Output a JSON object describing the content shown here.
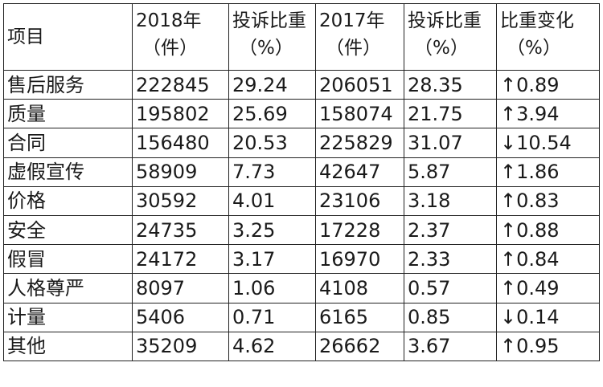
{
  "table": {
    "headers": [
      {
        "line1": "项目",
        "line2": ""
      },
      {
        "line1": "2018年",
        "line2": "（件）"
      },
      {
        "line1": "投诉比重",
        "line2": "（%）"
      },
      {
        "line1": "2017年",
        "line2": "（件）"
      },
      {
        "line1": "投诉比重",
        "line2": "（%）"
      },
      {
        "line1": "比重变化",
        "line2": "（%）"
      }
    ],
    "rows": [
      [
        "售后服务",
        "222845",
        "29.24",
        "206051",
        "28.35",
        "↑0.89"
      ],
      [
        "质量",
        "195802",
        "25.69",
        "158074",
        "21.75",
        "↑3.94"
      ],
      [
        "合同",
        "156480",
        "20.53",
        "225829",
        "31.07",
        "↓10.54"
      ],
      [
        "虚假宣传",
        "58909",
        "7.73",
        "42647",
        "5.87",
        "↑1.86"
      ],
      [
        "价格",
        "30592",
        "4.01",
        "23106",
        "3.18",
        "↑0.83"
      ],
      [
        "安全",
        "24735",
        "3.25",
        "17228",
        "2.37",
        "↑0.88"
      ],
      [
        "假冒",
        "24172",
        "3.17",
        "16970",
        "2.33",
        "↑0.84"
      ],
      [
        "人格尊严",
        "8097",
        "1.06",
        "4108",
        "0.57",
        "↑0.49"
      ],
      [
        "计量",
        "5406",
        "0.71",
        "6165",
        "0.85",
        "↓0.14"
      ],
      [
        "其他",
        "35209",
        "4.62",
        "26662",
        "3.67",
        "↑0.95"
      ]
    ]
  }
}
